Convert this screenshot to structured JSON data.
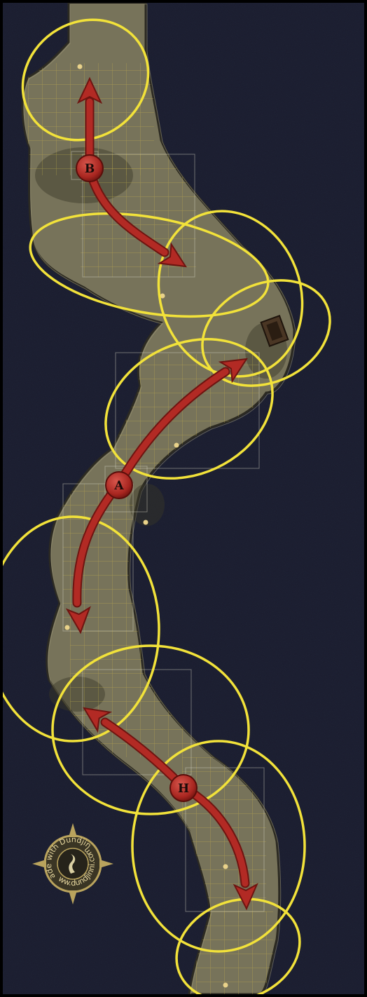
{
  "map": {
    "title": "",
    "colors": {
      "water": "#1f2236",
      "cave_floor": "#77735a",
      "cave_floor_light": "#8f8a6c",
      "cave_shadow": "#2c2a22",
      "grid": "#c6b34a",
      "circle": "#f2e23a",
      "arrow": "#b22a24",
      "arrow_outline": "#6e1410",
      "marker_fill": "#b8302a",
      "door": "#4a3624"
    }
  },
  "markers": [
    {
      "label": "B",
      "icon": "area-marker-b"
    },
    {
      "label": "A",
      "icon": "area-marker-a"
    },
    {
      "label": "H",
      "icon": "area-marker-h"
    }
  ],
  "watermark": {
    "text_top": "Made with Dundjinni",
    "text_bottom": "www.dundjinni.com",
    "icon": "compass-rose-logo"
  }
}
